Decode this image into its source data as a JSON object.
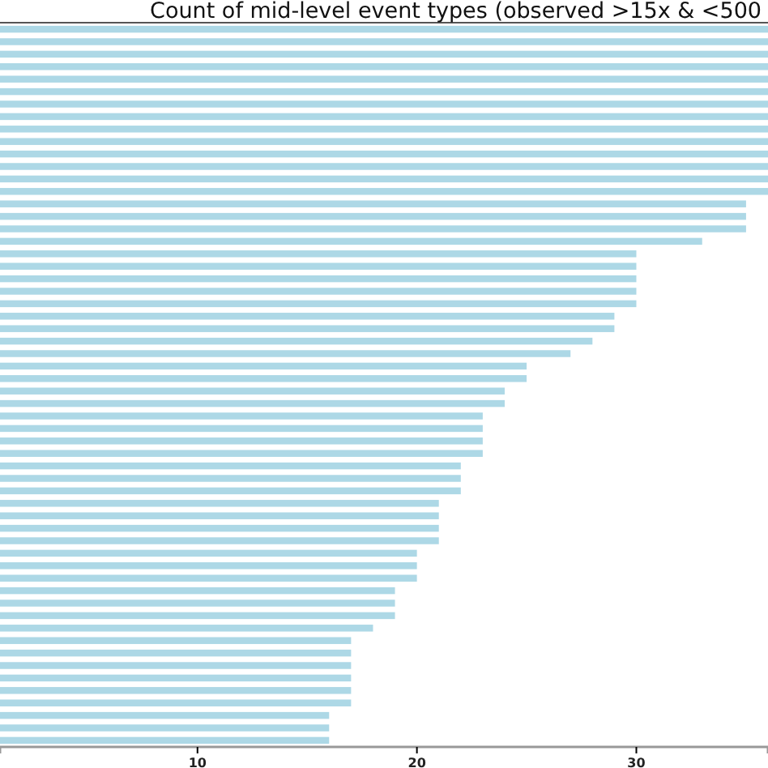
{
  "chart_data": {
    "type": "bar",
    "orientation": "horizontal",
    "title": "Count of mid-level event types (observed >15x & <500",
    "categories": [
      null,
      null,
      null,
      null,
      null,
      null,
      null,
      null,
      null,
      null,
      null,
      null,
      null,
      null,
      null,
      null,
      null,
      null,
      null,
      null,
      null,
      null,
      null,
      null,
      null,
      null,
      null,
      null,
      null,
      null,
      null,
      null,
      null,
      null,
      null,
      null,
      null,
      null,
      null,
      null,
      null,
      null,
      null,
      null,
      null,
      null,
      null,
      null,
      null,
      null,
      null,
      null,
      null,
      null,
      null,
      null,
      null,
      null
    ],
    "values": [
      36,
      36,
      36,
      36,
      36,
      36,
      36,
      36,
      36,
      36,
      36,
      36,
      36,
      36,
      35,
      35,
      35,
      33,
      30,
      30,
      30,
      30,
      30,
      29,
      29,
      28,
      27,
      25,
      25,
      24,
      24,
      23,
      23,
      23,
      23,
      22,
      22,
      22,
      21,
      21,
      21,
      21,
      20,
      20,
      20,
      19,
      19,
      19,
      18,
      17,
      17,
      17,
      17,
      17,
      17,
      16,
      16,
      16
    ],
    "color": "#add8e6",
    "xlim": [
      1,
      36
    ],
    "xticks": [
      10,
      20,
      30
    ],
    "grid": false,
    "tick_labels": "x"
  }
}
